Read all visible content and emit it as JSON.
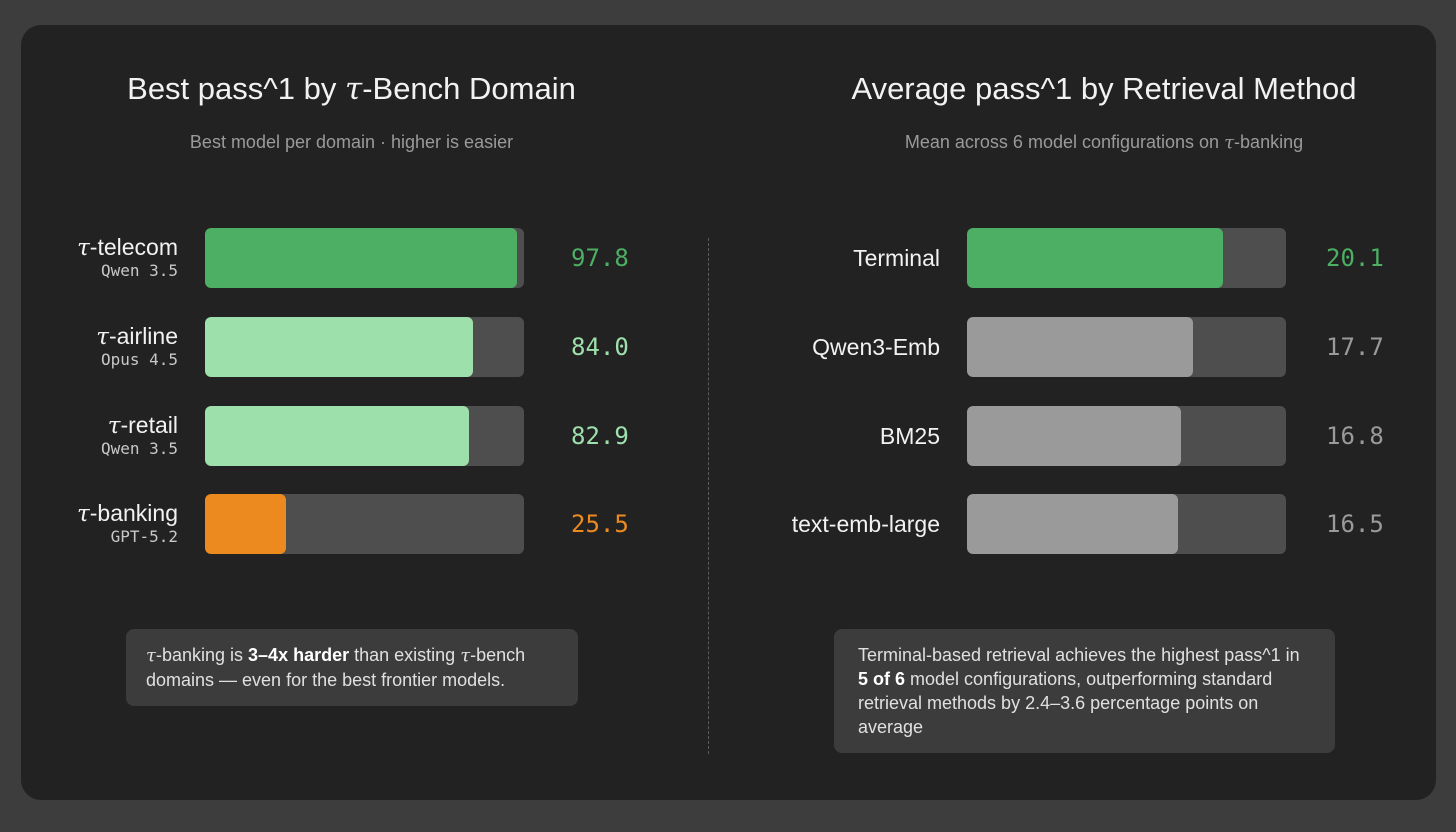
{
  "colors": {
    "background": "#3d3d3d",
    "card": "#222222",
    "track": "#4e4e4e",
    "dark_green": "#4caf63",
    "light_green": "#9ee0ab",
    "orange": "#ec8a1f",
    "gray": "#9a9a9a"
  },
  "chart_data": [
    {
      "type": "bar",
      "orientation": "horizontal",
      "title_prefix": "Best pass^1 by ",
      "title_tau": "τ",
      "title_suffix": "-Bench Domain",
      "subtitle": "Best model per domain · higher is easier",
      "xlim": [
        0,
        100
      ],
      "categories": [
        "telecom",
        "airline",
        "retail",
        "banking"
      ],
      "category_prefix": "τ",
      "category_labels": [
        "-telecom",
        "-airline",
        "-retail",
        "-banking"
      ],
      "models": [
        "Qwen 3.5",
        "Opus 4.5",
        "Qwen 3.5",
        "GPT-5.2"
      ],
      "values": [
        97.8,
        84.0,
        82.9,
        25.5
      ],
      "value_labels": [
        "97.8",
        "84.0",
        "82.9",
        "25.5"
      ],
      "bar_colors": [
        "#4caf63",
        "#9ee0ab",
        "#9ee0ab",
        "#ec8a1f"
      ],
      "note": {
        "tau": "τ",
        "t1": "-banking is ",
        "bold": "3–4x harder",
        "t2": " than existing ",
        "tau2": "τ",
        "t3": "-bench domains — even for the best frontier models."
      }
    },
    {
      "type": "bar",
      "orientation": "horizontal",
      "title": "Average pass^1 by Retrieval Method",
      "subtitle_text": "Mean across 6 model configurations on ",
      "subtitle_tau": "τ",
      "subtitle_suffix": "-banking",
      "xlim": [
        0,
        25
      ],
      "categories": [
        "Terminal",
        "Qwen3-Emb",
        "BM25",
        "text-emb-large"
      ],
      "values": [
        20.1,
        17.7,
        16.8,
        16.5
      ],
      "value_labels": [
        "20.1",
        "17.7",
        "16.8",
        "16.5"
      ],
      "bar_colors": [
        "#4caf63",
        "#9a9a9a",
        "#9a9a9a",
        "#9a9a9a"
      ],
      "value_colors": [
        "#4caf63",
        "#9a9a9a",
        "#9a9a9a",
        "#9a9a9a"
      ],
      "note": {
        "t1": "Terminal-based retrieval achieves the highest pass^1 in ",
        "bold": "5 of 6",
        "t2": " model configurations, outperforming standard retrieval methods by 2.4–3.6 percentage points on average"
      }
    }
  ]
}
